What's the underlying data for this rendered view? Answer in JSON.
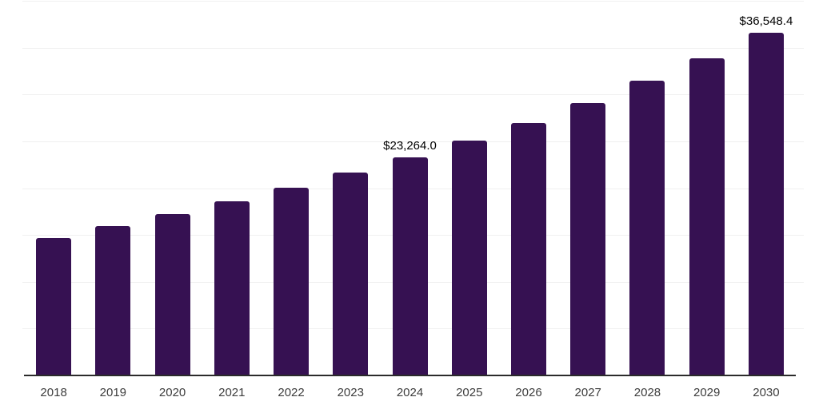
{
  "chart_data": {
    "type": "bar",
    "title": "",
    "xlabel": "",
    "ylabel": "",
    "categories": [
      "2018",
      "2019",
      "2020",
      "2021",
      "2022",
      "2023",
      "2024",
      "2025",
      "2026",
      "2027",
      "2028",
      "2029",
      "2030"
    ],
    "values": [
      14700,
      15950,
      17200,
      18600,
      20080,
      21650,
      23264.0,
      25040,
      26950,
      29100,
      31450,
      33880,
      36548.4
    ],
    "data_labels": {
      "6": "$23,264.0",
      "12": "$36,548.4"
    },
    "ylim": [
      0,
      40000
    ],
    "gridline_interval": 5000,
    "grid": true,
    "legend_position": "none",
    "colors": {
      "bar": "#361152",
      "axis_line": "#2b2b2b",
      "gridline": "#f0f0f0",
      "tick_label": "#3d3d3d",
      "value_label": "#000000",
      "background": "#ffffff"
    }
  }
}
